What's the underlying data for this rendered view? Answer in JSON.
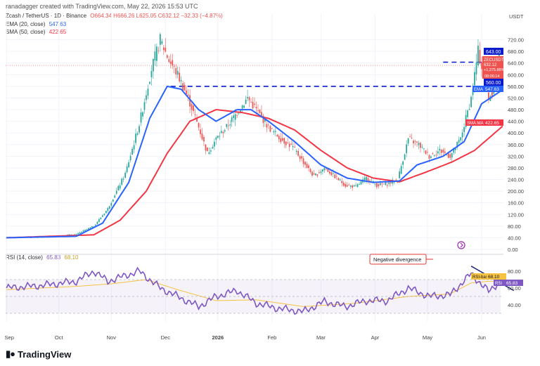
{
  "header": {
    "created_by": "ranadagger created with TradingView.com, May 22, 2026 15:53 UTC",
    "symbol": "Zcash / TetherUS · 1D · Binance",
    "ohlc": "O664.34  H666.26  L625.05  C632.12  −32.33 (−4.87%)"
  },
  "indicators": {
    "ema_label": "EMA (20, close)",
    "ema_value": "547.63",
    "sma_label": "SMA (50, close)",
    "sma_value": "422.65",
    "rsi_label": "RSI (14, close)",
    "rsi_value": "65.83",
    "rsi_ma_value": "68.10"
  },
  "axis": {
    "currency": "USDT",
    "price_ticks": [
      "720.00",
      "680.00",
      "640.00",
      "600.00",
      "560.00",
      "520.00",
      "480.00",
      "440.00",
      "400.00",
      "360.00",
      "320.00",
      "280.00",
      "240.00",
      "200.00",
      "160.00",
      "120.00",
      "80.00",
      "40.00",
      "0.00"
    ],
    "rsi_ticks": [
      "80.00",
      "60.00",
      "40.00"
    ],
    "time_ticks": [
      "Sep",
      "Oct",
      "Nov",
      "Dec",
      "2026",
      "Feb",
      "Mar",
      "Apr",
      "May",
      "Jun"
    ]
  },
  "price_tags": {
    "resistance": "643.00",
    "symbol": "ZECUSDT",
    "last": "632.12",
    "change": "+1,375.88%",
    "countdown": "08:06:14",
    "support": "560.00",
    "ema_tag": "EMA",
    "ema": "547.63",
    "sma_tag": "SMA:MA",
    "sma": "422.65",
    "rsi_ma_tag": "RSI-based MA",
    "rsi_ma": "68.10",
    "rsi_tag": "RSI",
    "rsi": "65.83"
  },
  "annotation": {
    "divergence": "Negative divergence"
  },
  "brand": {
    "name": "TradingView"
  },
  "colors": {
    "up": "#26a69a",
    "down": "#ef5350",
    "ema": "#2962ff",
    "sma": "#f23645",
    "rsi": "#7e57c2",
    "rsi_ma": "#f5c242",
    "level": "#0a1acd"
  },
  "chart_data": {
    "type": "candlestick",
    "y_unit": "USDT",
    "ylim": [
      0,
      760
    ],
    "rsi_ylim": [
      20,
      95
    ],
    "levels": [
      643,
      560
    ],
    "x_months": [
      "Sep",
      "Oct",
      "Nov",
      "Dec",
      "2026",
      "Feb",
      "Mar",
      "Apr",
      "May",
      "Jun"
    ],
    "close_waypoints": [
      [
        0,
        40
      ],
      [
        20,
        42
      ],
      [
        40,
        52
      ],
      [
        50,
        80
      ],
      [
        58,
        140
      ],
      [
        68,
        260
      ],
      [
        76,
        430
      ],
      [
        83,
        620
      ],
      [
        88,
        720
      ],
      [
        93,
        650
      ],
      [
        98,
        600
      ],
      [
        104,
        520
      ],
      [
        110,
        420
      ],
      [
        115,
        330
      ],
      [
        120,
        380
      ],
      [
        126,
        420
      ],
      [
        132,
        470
      ],
      [
        138,
        520
      ],
      [
        143,
        480
      ],
      [
        150,
        420
      ],
      [
        157,
        380
      ],
      [
        164,
        350
      ],
      [
        170,
        300
      ],
      [
        176,
        250
      ],
      [
        182,
        280
      ],
      [
        188,
        250
      ],
      [
        194,
        220
      ],
      [
        200,
        215
      ],
      [
        206,
        245
      ],
      [
        212,
        220
      ],
      [
        218,
        225
      ],
      [
        224,
        240
      ],
      [
        230,
        380
      ],
      [
        236,
        360
      ],
      [
        242,
        320
      ],
      [
        248,
        340
      ],
      [
        254,
        320
      ],
      [
        260,
        380
      ],
      [
        266,
        520
      ],
      [
        270,
        680
      ],
      [
        273,
        600
      ],
      [
        276,
        520
      ],
      [
        280,
        560
      ],
      [
        282,
        660
      ],
      [
        284,
        632
      ]
    ],
    "ema20_waypoints": [
      [
        0,
        40
      ],
      [
        40,
        45
      ],
      [
        55,
        90
      ],
      [
        70,
        230
      ],
      [
        82,
        450
      ],
      [
        92,
        560
      ],
      [
        100,
        550
      ],
      [
        110,
        480
      ],
      [
        120,
        440
      ],
      [
        132,
        480
      ],
      [
        140,
        480
      ],
      [
        150,
        440
      ],
      [
        165,
        370
      ],
      [
        180,
        290
      ],
      [
        195,
        245
      ],
      [
        210,
        230
      ],
      [
        225,
        235
      ],
      [
        235,
        290
      ],
      [
        250,
        320
      ],
      [
        262,
        370
      ],
      [
        272,
        500
      ],
      [
        284,
        548
      ]
    ],
    "sma50_waypoints": [
      [
        0,
        40
      ],
      [
        50,
        50
      ],
      [
        65,
        100
      ],
      [
        80,
        200
      ],
      [
        92,
        330
      ],
      [
        105,
        440
      ],
      [
        120,
        480
      ],
      [
        135,
        470
      ],
      [
        150,
        450
      ],
      [
        165,
        410
      ],
      [
        180,
        340
      ],
      [
        195,
        280
      ],
      [
        210,
        245
      ],
      [
        225,
        232
      ],
      [
        240,
        265
      ],
      [
        255,
        300
      ],
      [
        268,
        340
      ],
      [
        284,
        423
      ]
    ],
    "rsi_waypoints": [
      [
        0,
        60
      ],
      [
        20,
        63
      ],
      [
        40,
        68
      ],
      [
        50,
        80
      ],
      [
        58,
        68
      ],
      [
        76,
        80
      ],
      [
        88,
        60
      ],
      [
        98,
        50
      ],
      [
        110,
        38
      ],
      [
        120,
        50
      ],
      [
        132,
        57
      ],
      [
        143,
        42
      ],
      [
        155,
        36
      ],
      [
        170,
        32
      ],
      [
        182,
        44
      ],
      [
        194,
        38
      ],
      [
        206,
        45
      ],
      [
        218,
        45
      ],
      [
        230,
        60
      ],
      [
        242,
        50
      ],
      [
        254,
        52
      ],
      [
        266,
        77
      ],
      [
        273,
        62
      ],
      [
        276,
        56
      ],
      [
        282,
        67
      ],
      [
        284,
        66
      ]
    ],
    "rsi_ma_waypoints": [
      [
        0,
        58
      ],
      [
        40,
        62
      ],
      [
        60,
        65
      ],
      [
        80,
        70
      ],
      [
        98,
        58
      ],
      [
        120,
        45
      ],
      [
        143,
        46
      ],
      [
        170,
        38
      ],
      [
        200,
        42
      ],
      [
        230,
        50
      ],
      [
        254,
        53
      ],
      [
        266,
        66
      ],
      [
        276,
        68
      ],
      [
        284,
        68
      ]
    ],
    "divergence_line": [
      [
        266,
        86
      ],
      [
        284,
        62
      ]
    ]
  }
}
